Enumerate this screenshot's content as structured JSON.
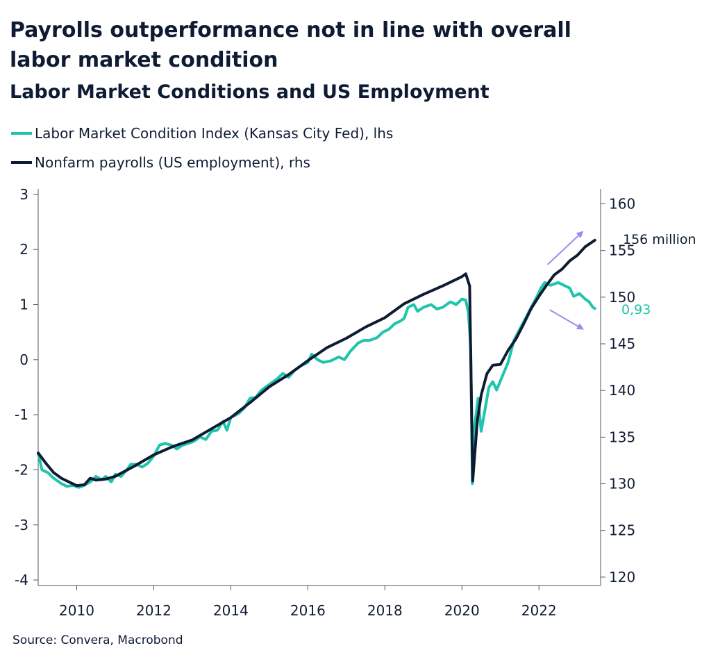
{
  "title": "Payrolls outperformance not in line with overall labor market condition",
  "subtitle": "Labor Market Conditions and US Employment",
  "source": "Source: Convera, Macrobond",
  "colors": {
    "lmci": "#1ec4ad",
    "payrolls": "#0e1b33",
    "arrow": "#9b8cf0",
    "axis": "#555555"
  },
  "chart_data": {
    "type": "line",
    "title": "Labor Market Conditions and US Employment",
    "x_ticks": [
      "2010",
      "2012",
      "2014",
      "2016",
      "2018",
      "2020",
      "2022"
    ],
    "xlim": [
      2009.0,
      2023.6
    ],
    "y_left": {
      "label": "lhs",
      "ylim": [
        -4.1,
        3.1
      ],
      "ticks": [
        "3",
        "2",
        "1",
        "0",
        "-1",
        "-2",
        "-3",
        "-4"
      ]
    },
    "y_right": {
      "label": "rhs",
      "ylim": [
        119.1,
        161.6
      ],
      "ticks": [
        "160",
        "155",
        "150",
        "145",
        "140",
        "135",
        "130",
        "125",
        "120"
      ]
    },
    "annotations": {
      "payrolls_end": "156 million",
      "lmci_end": "0,93"
    },
    "series": [
      {
        "name": "Labor Market Condition Index (Kansas City Fed), lhs",
        "axis": "left",
        "points": [
          [
            2009.0,
            -1.7
          ],
          [
            2009.1,
            -2.0
          ],
          [
            2009.25,
            -2.05
          ],
          [
            2009.4,
            -2.15
          ],
          [
            2009.6,
            -2.25
          ],
          [
            2009.75,
            -2.3
          ],
          [
            2009.9,
            -2.28
          ],
          [
            2010.05,
            -2.32
          ],
          [
            2010.2,
            -2.28
          ],
          [
            2010.35,
            -2.22
          ],
          [
            2010.5,
            -2.12
          ],
          [
            2010.65,
            -2.18
          ],
          [
            2010.75,
            -2.12
          ],
          [
            2010.9,
            -2.22
          ],
          [
            2011.0,
            -2.08
          ],
          [
            2011.15,
            -2.12
          ],
          [
            2011.3,
            -2.0
          ],
          [
            2011.4,
            -1.9
          ],
          [
            2011.55,
            -1.9
          ],
          [
            2011.7,
            -1.95
          ],
          [
            2011.85,
            -1.88
          ],
          [
            2012.0,
            -1.75
          ],
          [
            2012.15,
            -1.55
          ],
          [
            2012.3,
            -1.52
          ],
          [
            2012.45,
            -1.55
          ],
          [
            2012.6,
            -1.62
          ],
          [
            2012.75,
            -1.55
          ],
          [
            2012.9,
            -1.52
          ],
          [
            2013.05,
            -1.48
          ],
          [
            2013.2,
            -1.4
          ],
          [
            2013.35,
            -1.45
          ],
          [
            2013.5,
            -1.3
          ],
          [
            2013.65,
            -1.28
          ],
          [
            2013.8,
            -1.12
          ],
          [
            2013.9,
            -1.28
          ],
          [
            2014.0,
            -1.05
          ],
          [
            2014.2,
            -0.98
          ],
          [
            2014.35,
            -0.88
          ],
          [
            2014.5,
            -0.7
          ],
          [
            2014.65,
            -0.68
          ],
          [
            2014.8,
            -0.55
          ],
          [
            2015.0,
            -0.45
          ],
          [
            2015.2,
            -0.35
          ],
          [
            2015.35,
            -0.25
          ],
          [
            2015.5,
            -0.32
          ],
          [
            2015.65,
            -0.2
          ],
          [
            2015.8,
            -0.12
          ],
          [
            2016.0,
            -0.05
          ],
          [
            2016.1,
            0.1
          ],
          [
            2016.25,
            0.0
          ],
          [
            2016.4,
            -0.05
          ],
          [
            2016.6,
            -0.02
          ],
          [
            2016.8,
            0.05
          ],
          [
            2016.95,
            0.0
          ],
          [
            2017.1,
            0.15
          ],
          [
            2017.3,
            0.3
          ],
          [
            2017.45,
            0.35
          ],
          [
            2017.6,
            0.35
          ],
          [
            2017.8,
            0.4
          ],
          [
            2017.95,
            0.5
          ],
          [
            2018.1,
            0.55
          ],
          [
            2018.25,
            0.65
          ],
          [
            2018.4,
            0.7
          ],
          [
            2018.5,
            0.75
          ],
          [
            2018.6,
            0.95
          ],
          [
            2018.75,
            1.0
          ],
          [
            2018.85,
            0.88
          ],
          [
            2019.0,
            0.95
          ],
          [
            2019.2,
            1.0
          ],
          [
            2019.35,
            0.92
          ],
          [
            2019.5,
            0.95
          ],
          [
            2019.7,
            1.05
          ],
          [
            2019.85,
            1.0
          ],
          [
            2020.0,
            1.1
          ],
          [
            2020.1,
            1.08
          ],
          [
            2020.17,
            0.85
          ],
          [
            2020.23,
            0.2
          ],
          [
            2020.27,
            -2.25
          ],
          [
            2020.33,
            -1.2
          ],
          [
            2020.42,
            -0.7
          ],
          [
            2020.5,
            -1.3
          ],
          [
            2020.6,
            -0.9
          ],
          [
            2020.7,
            -0.5
          ],
          [
            2020.8,
            -0.4
          ],
          [
            2020.9,
            -0.55
          ],
          [
            2021.05,
            -0.3
          ],
          [
            2021.2,
            -0.05
          ],
          [
            2021.35,
            0.35
          ],
          [
            2021.5,
            0.55
          ],
          [
            2021.65,
            0.75
          ],
          [
            2021.8,
            0.95
          ],
          [
            2021.95,
            1.15
          ],
          [
            2022.05,
            1.3
          ],
          [
            2022.15,
            1.4
          ],
          [
            2022.3,
            1.35
          ],
          [
            2022.5,
            1.4
          ],
          [
            2022.65,
            1.35
          ],
          [
            2022.8,
            1.3
          ],
          [
            2022.9,
            1.15
          ],
          [
            2023.05,
            1.2
          ],
          [
            2023.2,
            1.1
          ],
          [
            2023.3,
            1.05
          ],
          [
            2023.4,
            0.95
          ],
          [
            2023.45,
            0.93
          ]
        ]
      },
      {
        "name": "Nonfarm payrolls (US employment), rhs",
        "axis": "right",
        "points": [
          [
            2009.0,
            133.3
          ],
          [
            2009.2,
            132.2
          ],
          [
            2009.4,
            131.2
          ],
          [
            2009.6,
            130.6
          ],
          [
            2009.8,
            130.2
          ],
          [
            2010.0,
            129.8
          ],
          [
            2010.2,
            129.9
          ],
          [
            2010.35,
            130.6
          ],
          [
            2010.5,
            130.4
          ],
          [
            2010.75,
            130.5
          ],
          [
            2011.0,
            130.8
          ],
          [
            2011.5,
            131.9
          ],
          [
            2012.0,
            133.1
          ],
          [
            2012.5,
            134.0
          ],
          [
            2013.0,
            134.7
          ],
          [
            2013.5,
            135.9
          ],
          [
            2014.0,
            137.1
          ],
          [
            2014.5,
            138.7
          ],
          [
            2015.0,
            140.4
          ],
          [
            2015.5,
            141.7
          ],
          [
            2016.0,
            143.2
          ],
          [
            2016.5,
            144.6
          ],
          [
            2017.0,
            145.6
          ],
          [
            2017.5,
            146.8
          ],
          [
            2018.0,
            147.8
          ],
          [
            2018.5,
            149.3
          ],
          [
            2019.0,
            150.3
          ],
          [
            2019.5,
            151.2
          ],
          [
            2020.0,
            152.2
          ],
          [
            2020.1,
            152.5
          ],
          [
            2020.2,
            151.2
          ],
          [
            2020.28,
            130.3
          ],
          [
            2020.4,
            136.8
          ],
          [
            2020.5,
            139.5
          ],
          [
            2020.65,
            141.8
          ],
          [
            2020.8,
            142.7
          ],
          [
            2021.0,
            142.8
          ],
          [
            2021.2,
            144.3
          ],
          [
            2021.4,
            145.5
          ],
          [
            2021.6,
            147.1
          ],
          [
            2021.8,
            148.8
          ],
          [
            2022.0,
            150.1
          ],
          [
            2022.2,
            151.3
          ],
          [
            2022.4,
            152.4
          ],
          [
            2022.6,
            153.0
          ],
          [
            2022.8,
            153.9
          ],
          [
            2023.0,
            154.5
          ],
          [
            2023.2,
            155.4
          ],
          [
            2023.45,
            156.1
          ]
        ]
      }
    ]
  }
}
